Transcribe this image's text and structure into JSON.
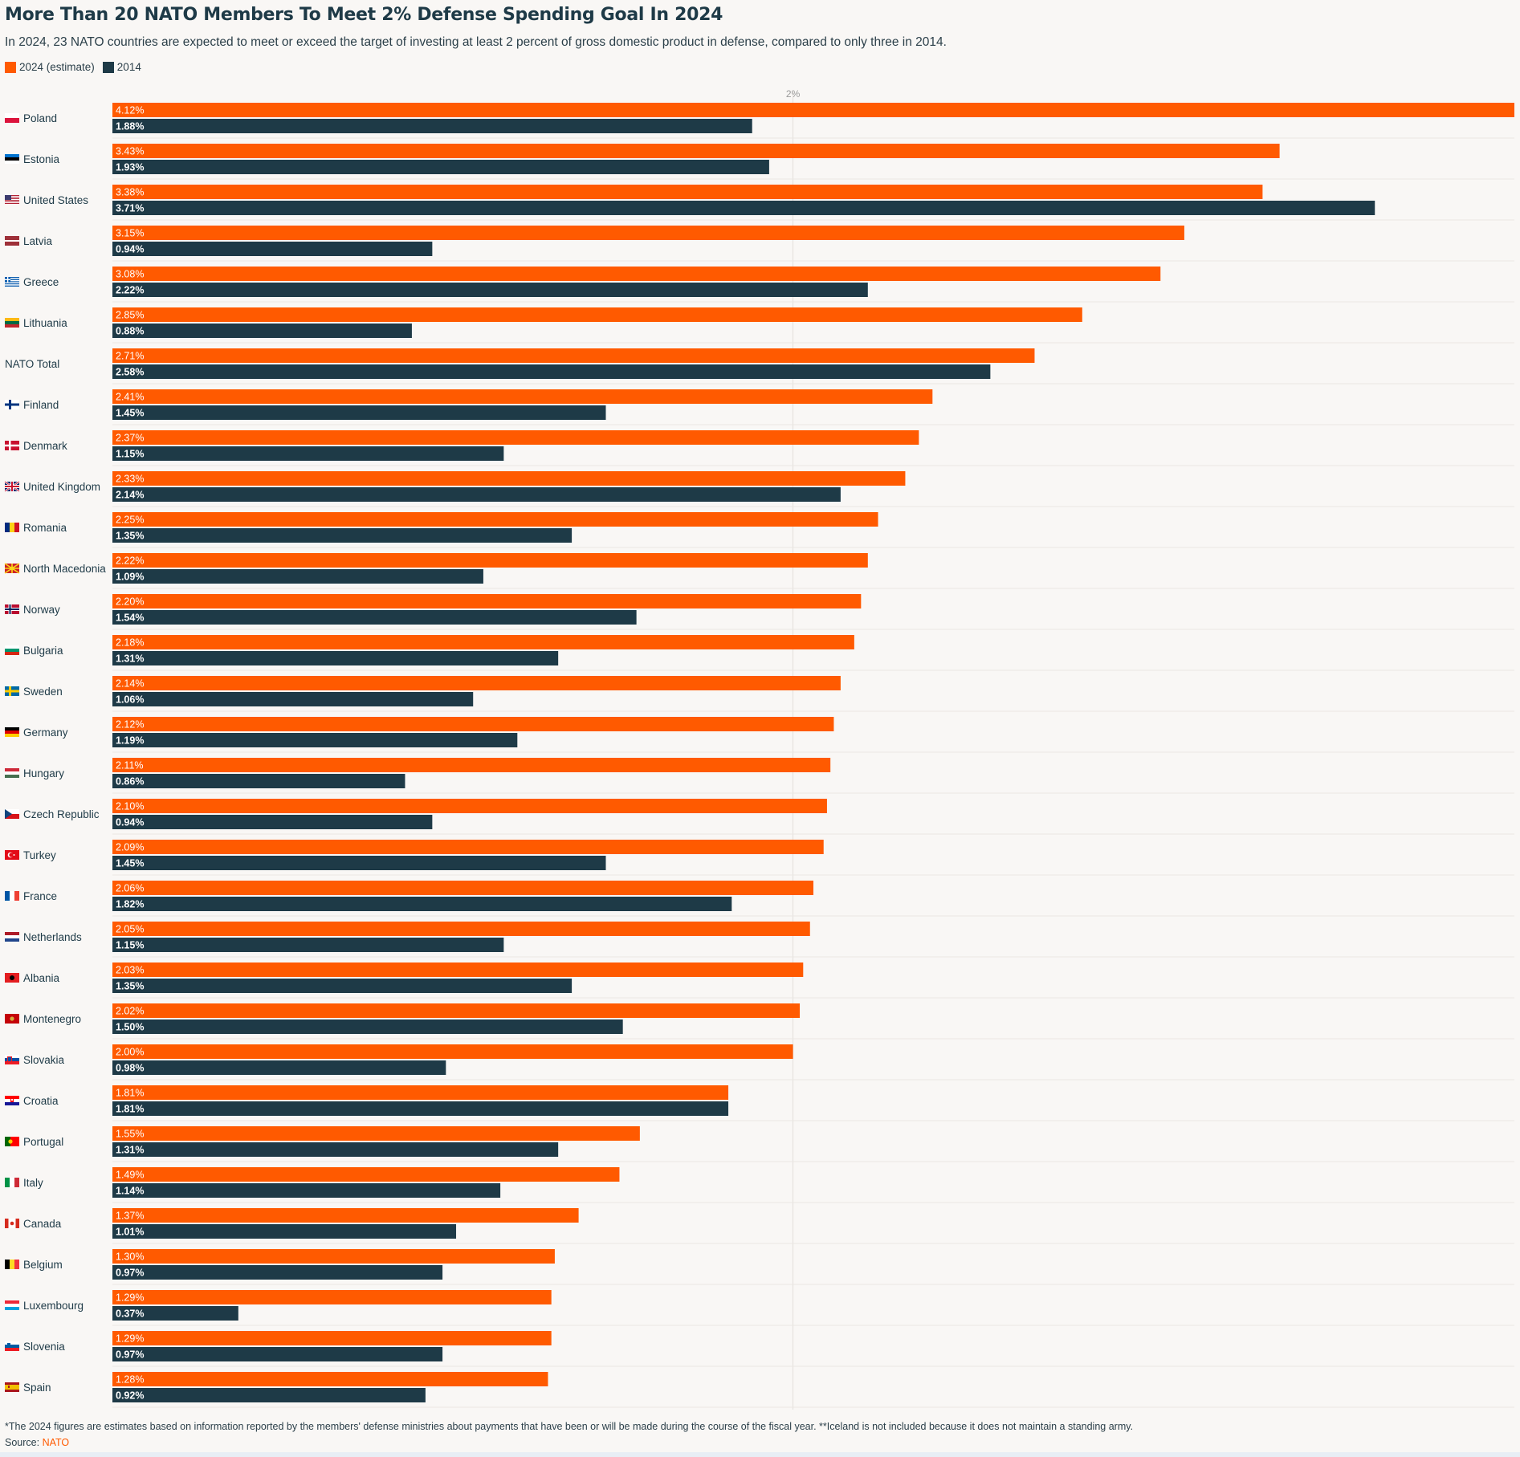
{
  "header": {
    "title": "More Than 20 NATO Members To Meet 2% Defense Spending Goal In 2024",
    "subtitle": "In 2024, 23 NATO countries are expected to meet or exceed the target of investing at least 2 percent of gross domestic product in defense, compared to only three in 2014."
  },
  "legend": [
    {
      "label": "2024 (estimate)",
      "color": "#ff5a00"
    },
    {
      "label": "2014",
      "color": "#1e3a47"
    }
  ],
  "footer": {
    "footnote": "*The 2024 figures are estimates based on information reported by the members' defense ministries about payments that have been or will be made during the course of the fiscal year. **Iceland is not included because it does not maintain a standing army.",
    "source_prefix": "Source: ",
    "source_link": "NATO"
  },
  "chart_data": {
    "type": "bar",
    "orientation": "horizontal",
    "reference_line": {
      "value": 2,
      "label": "2%"
    },
    "xlim": [
      0,
      4.12
    ],
    "grid": false,
    "legend_placement": "top-left",
    "categories": [
      "Poland",
      "Estonia",
      "United States",
      "Latvia",
      "Greece",
      "Lithuania",
      "NATO Total",
      "Finland",
      "Denmark",
      "United Kingdom",
      "Romania",
      "North Macedonia",
      "Norway",
      "Bulgaria",
      "Sweden",
      "Germany",
      "Hungary",
      "Czech Republic",
      "Turkey",
      "France",
      "Netherlands",
      "Albania",
      "Montenegro",
      "Slovakia",
      "Croatia",
      "Portugal",
      "Italy",
      "Canada",
      "Belgium",
      "Luxembourg",
      "Slovenia",
      "Spain"
    ],
    "flags": [
      "poland-flag-icon",
      "estonia-flag-icon",
      "united-states-flag-icon",
      "latvia-flag-icon",
      "greece-flag-icon",
      "lithuania-flag-icon",
      "",
      "finland-flag-icon",
      "denmark-flag-icon",
      "united-kingdom-flag-icon",
      "romania-flag-icon",
      "north-macedonia-flag-icon",
      "norway-flag-icon",
      "bulgaria-flag-icon",
      "sweden-flag-icon",
      "germany-flag-icon",
      "hungary-flag-icon",
      "czech-republic-flag-icon",
      "turkey-flag-icon",
      "france-flag-icon",
      "netherlands-flag-icon",
      "albania-flag-icon",
      "montenegro-flag-icon",
      "slovakia-flag-icon",
      "croatia-flag-icon",
      "portugal-flag-icon",
      "italy-flag-icon",
      "canada-flag-icon",
      "belgium-flag-icon",
      "luxembourg-flag-icon",
      "slovenia-flag-icon",
      "spain-flag-icon"
    ],
    "series": [
      {
        "name": "2024 (estimate)",
        "color": "#ff5a00",
        "values": [
          4.12,
          3.43,
          3.38,
          3.15,
          3.08,
          2.85,
          2.71,
          2.41,
          2.37,
          2.33,
          2.25,
          2.22,
          2.2,
          2.18,
          2.14,
          2.12,
          2.11,
          2.1,
          2.09,
          2.06,
          2.05,
          2.03,
          2.02,
          2.0,
          1.81,
          1.55,
          1.49,
          1.37,
          1.3,
          1.29,
          1.29,
          1.28
        ],
        "labels": [
          "4.12%",
          "3.43%",
          "3.38%",
          "3.15%",
          "3.08%",
          "2.85%",
          "2.71%",
          "2.41%",
          "2.37%",
          "2.33%",
          "2.25%",
          "2.22%",
          "2.20%",
          "2.18%",
          "2.14%",
          "2.12%",
          "2.11%",
          "2.10%",
          "2.09%",
          "2.06%",
          "2.05%",
          "2.03%",
          "2.02%",
          "2.00%",
          "1.81%",
          "1.55%",
          "1.49%",
          "1.37%",
          "1.30%",
          "1.29%",
          "1.29%",
          "1.28%"
        ]
      },
      {
        "name": "2014",
        "color": "#1e3a47",
        "values": [
          1.88,
          1.93,
          3.71,
          0.94,
          2.22,
          0.88,
          2.58,
          1.45,
          1.15,
          2.14,
          1.35,
          1.09,
          1.54,
          1.31,
          1.06,
          1.19,
          0.86,
          0.94,
          1.45,
          1.82,
          1.15,
          1.35,
          1.5,
          0.98,
          1.81,
          1.31,
          1.14,
          1.01,
          0.97,
          0.37,
          0.97,
          0.92
        ],
        "labels": [
          "1.88%",
          "1.93%",
          "3.71%",
          "0.94%",
          "2.22%",
          "0.88%",
          "2.58%",
          "1.45%",
          "1.15%",
          "2.14%",
          "1.35%",
          "1.09%",
          "1.54%",
          "1.31%",
          "1.06%",
          "1.19%",
          "0.86%",
          "0.94%",
          "1.45%",
          "1.82%",
          "1.15%",
          "1.35%",
          "1.50%",
          "0.98%",
          "1.81%",
          "1.31%",
          "1.14%",
          "1.01%",
          "0.97%",
          "0.37%",
          "0.97%",
          "0.92%"
        ]
      }
    ]
  }
}
